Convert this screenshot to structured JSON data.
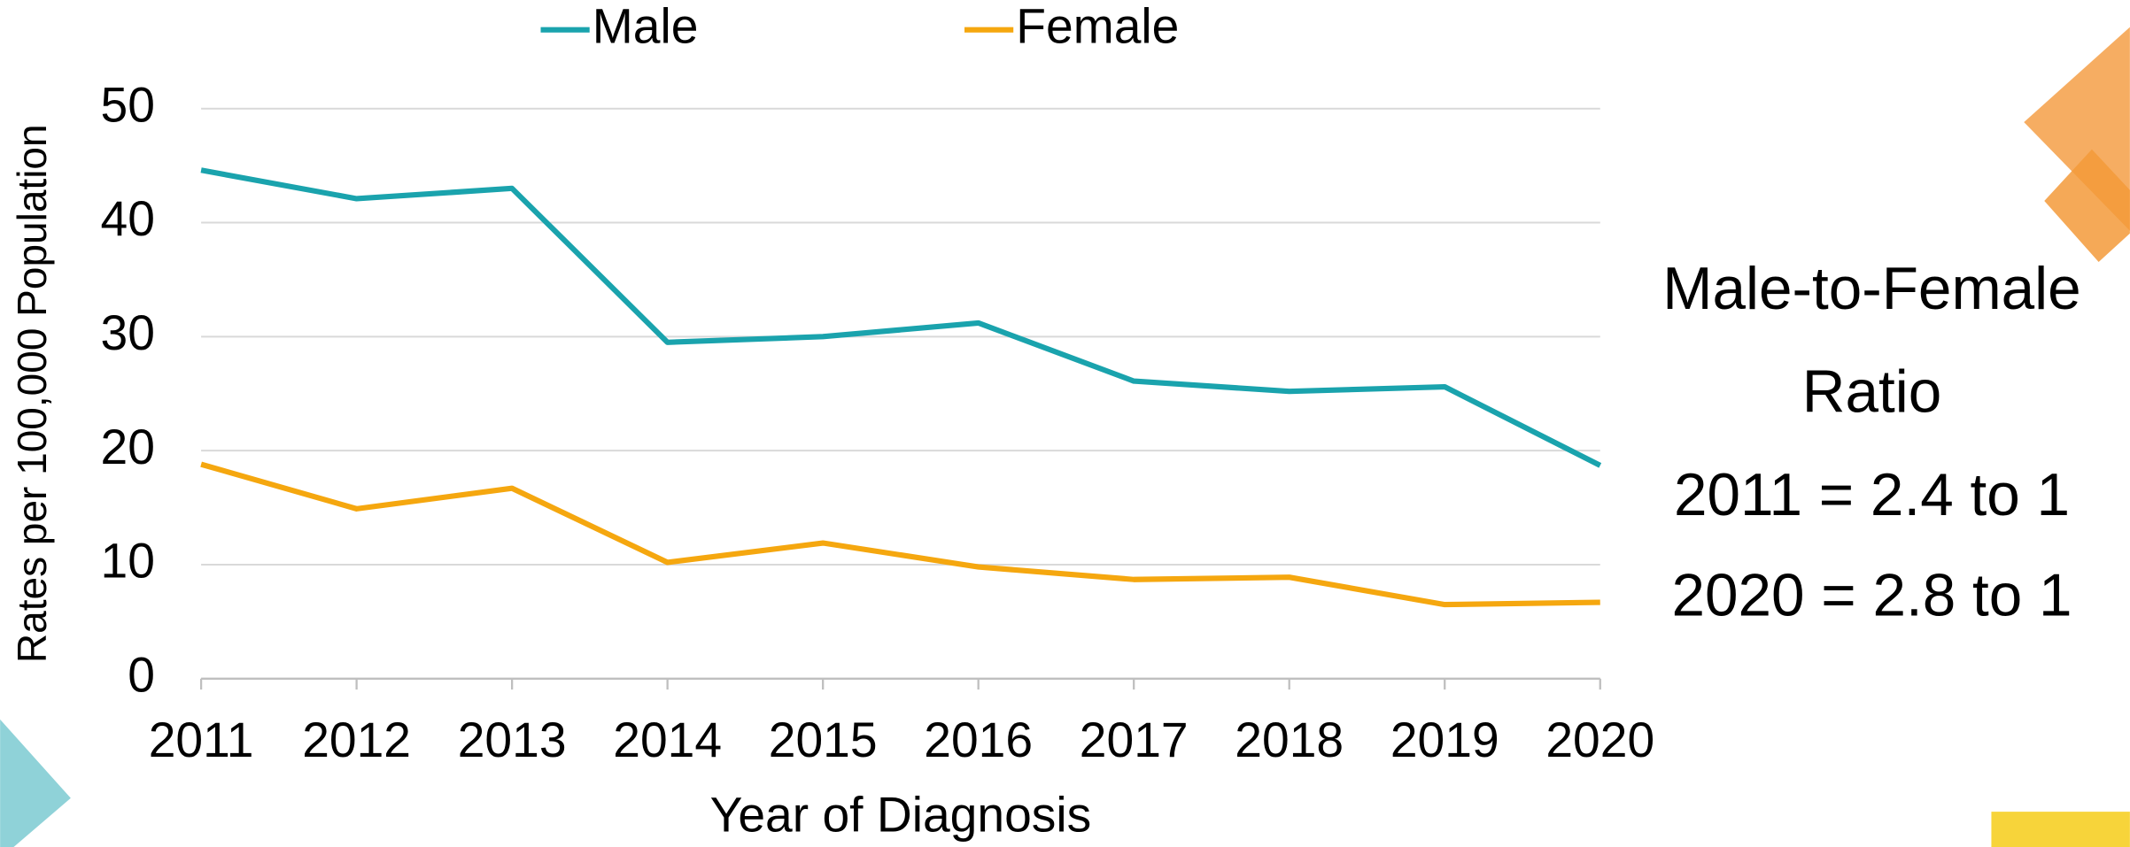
{
  "chart_data": {
    "type": "line",
    "categories": [
      "2011",
      "2012",
      "2013",
      "2014",
      "2015",
      "2016",
      "2017",
      "2018",
      "2019",
      "2020"
    ],
    "series": [
      {
        "name": "Male",
        "color": "#1aa3ad",
        "values": [
          44.6,
          42.1,
          43.0,
          29.5,
          30.0,
          31.2,
          26.1,
          25.2,
          25.6,
          18.7
        ]
      },
      {
        "name": "Female",
        "color": "#f5a70f",
        "values": [
          18.8,
          14.9,
          16.7,
          10.2,
          11.9,
          9.8,
          8.7,
          8.9,
          6.5,
          6.7
        ]
      }
    ],
    "ylim": [
      0,
      50
    ],
    "yticks": [
      0,
      10,
      20,
      30,
      40,
      50
    ],
    "grid": true,
    "x_label": "Year of Diagnosis",
    "y_label": "Rates per 100,000 Population",
    "legend": "top",
    "annotations": [
      "Male-to-Female",
      "Ratio",
      "2011 = 2.4 to 1",
      "2020 = 2.8 to 1"
    ]
  }
}
